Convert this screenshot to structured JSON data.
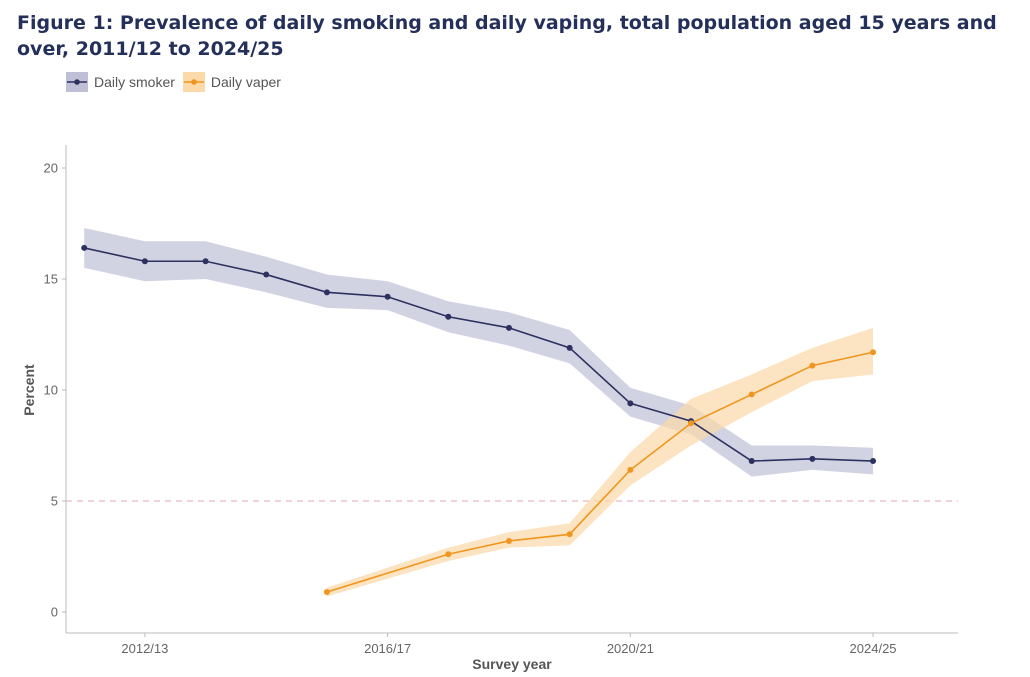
{
  "title": "Figure 1: Prevalence of daily smoking and daily vaping, total population aged 15 years and over, 2011/12 to 2024/25",
  "legend": {
    "items": [
      {
        "label": "Daily smoker",
        "color": "#2d3160",
        "band_color": "#bfc0d6"
      },
      {
        "label": "Daily vaper",
        "color": "#f0961e",
        "band_color": "#fbd9a8"
      }
    ]
  },
  "chart_data": {
    "type": "line",
    "xlabel": "Survey year",
    "ylabel": "Percent",
    "ylim": [
      0,
      20
    ],
    "yticks": [
      0,
      5,
      10,
      15,
      20
    ],
    "xlim": [
      2010.7,
      2025.4
    ],
    "xticks": [
      {
        "value": 2012,
        "label": "2012/13"
      },
      {
        "value": 2016,
        "label": "2016/17"
      },
      {
        "value": 2020,
        "label": "2020/21"
      },
      {
        "value": 2024,
        "label": "2024/25"
      }
    ],
    "reference_line": {
      "y": 5,
      "style": "dashed",
      "color": "#e6b8c0"
    },
    "grid": false,
    "legend_position": "top-left",
    "series": [
      {
        "name": "Daily smoker",
        "color": "#2d3160",
        "band_color": "#bfc0d6",
        "points": [
          {
            "x": 2011,
            "y": 16.4,
            "lo": 15.5,
            "hi": 17.3
          },
          {
            "x": 2012,
            "y": 15.8,
            "lo": 14.9,
            "hi": 16.7
          },
          {
            "x": 2013,
            "y": 15.8,
            "lo": 15.0,
            "hi": 16.7
          },
          {
            "x": 2014,
            "y": 15.2,
            "lo": 14.4,
            "hi": 16.0
          },
          {
            "x": 2015,
            "y": 14.4,
            "lo": 13.7,
            "hi": 15.2
          },
          {
            "x": 2016,
            "y": 14.2,
            "lo": 13.6,
            "hi": 14.9
          },
          {
            "x": 2017,
            "y": 13.3,
            "lo": 12.6,
            "hi": 14.0
          },
          {
            "x": 2018,
            "y": 12.8,
            "lo": 12.0,
            "hi": 13.5
          },
          {
            "x": 2019,
            "y": 11.9,
            "lo": 11.2,
            "hi": 12.7
          },
          {
            "x": 2020,
            "y": 9.4,
            "lo": 8.8,
            "hi": 10.1
          },
          {
            "x": 2021,
            "y": 8.6,
            "lo": 8.0,
            "hi": 9.3
          },
          {
            "x": 2022,
            "y": 6.8,
            "lo": 6.1,
            "hi": 7.5
          },
          {
            "x": 2023,
            "y": 6.9,
            "lo": 6.4,
            "hi": 7.5
          },
          {
            "x": 2024,
            "y": 6.8,
            "lo": 6.2,
            "hi": 7.4
          }
        ]
      },
      {
        "name": "Daily vaper",
        "color": "#f0961e",
        "band_color": "#fbd9a8",
        "points": [
          {
            "x": 2015,
            "y": 0.9,
            "lo": 0.7,
            "hi": 1.1
          },
          {
            "x": 2017,
            "y": 2.6,
            "lo": 2.3,
            "hi": 2.9
          },
          {
            "x": 2018,
            "y": 3.2,
            "lo": 2.9,
            "hi": 3.6
          },
          {
            "x": 2019,
            "y": 3.5,
            "lo": 3.0,
            "hi": 4.0
          },
          {
            "x": 2020,
            "y": 6.4,
            "lo": 5.7,
            "hi": 7.2
          },
          {
            "x": 2021,
            "y": 8.5,
            "lo": 7.5,
            "hi": 9.6
          },
          {
            "x": 2022,
            "y": 9.8,
            "lo": 9.0,
            "hi": 10.7
          },
          {
            "x": 2023,
            "y": 11.1,
            "lo": 10.4,
            "hi": 11.9
          },
          {
            "x": 2024,
            "y": 11.7,
            "lo": 10.7,
            "hi": 12.8
          }
        ]
      }
    ]
  }
}
